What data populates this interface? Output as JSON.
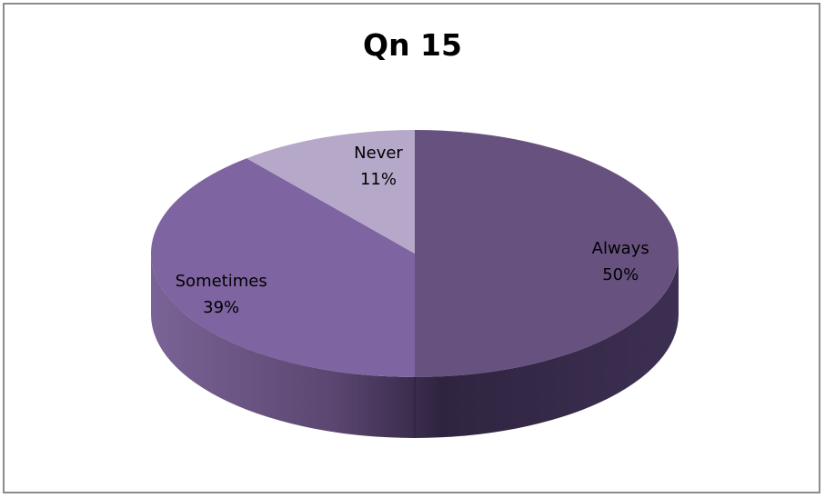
{
  "chart_data": {
    "type": "pie",
    "title": "Qn 15",
    "slices": [
      {
        "label": "Always",
        "value": 50,
        "value_label": "50%",
        "color": "#67517f"
      },
      {
        "label": "Sometimes",
        "value": 39,
        "value_label": "39%",
        "color": "#7e64a0"
      },
      {
        "label": "Never",
        "value": 11,
        "value_label": "11%",
        "color": "#b6a8c9"
      }
    ],
    "style": "3d-pie",
    "legend": "none"
  }
}
